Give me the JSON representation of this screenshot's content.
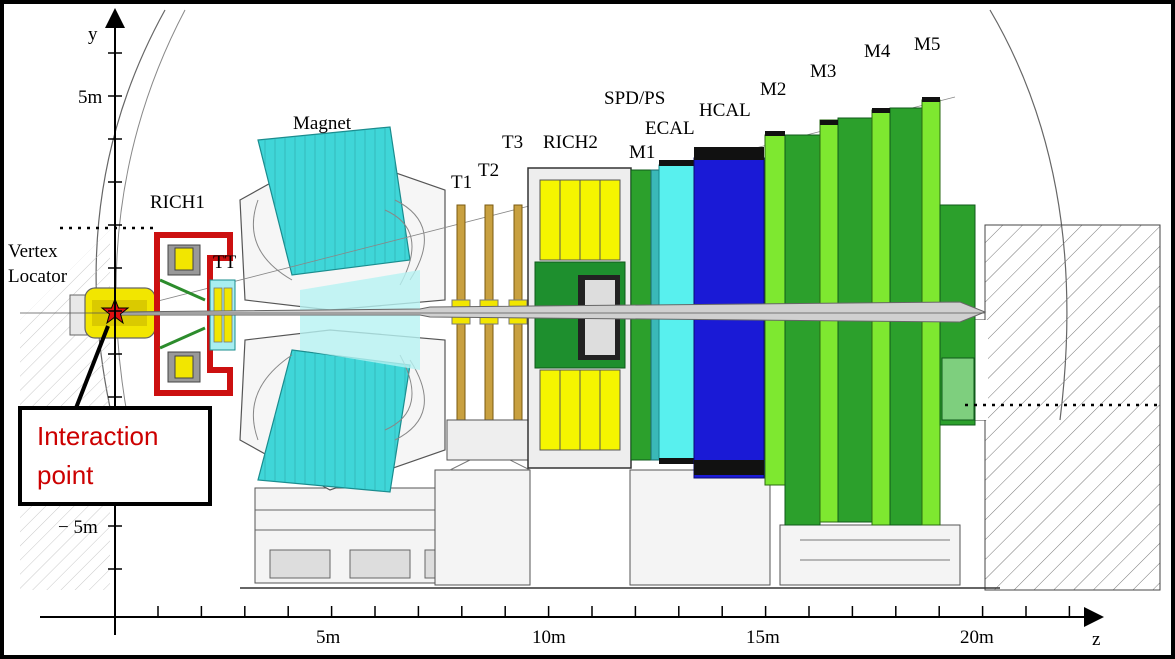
{
  "axes": {
    "y_label": "y",
    "z_label": "z",
    "y_ticks": [
      "5m",
      "− 5m"
    ],
    "z_ticks": [
      "5m",
      "10m",
      "15m",
      "20m"
    ]
  },
  "labels": {
    "magnet": "Magnet",
    "rich1": "RICH1",
    "vertex_line1": "Vertex",
    "vertex_line2": "Locator",
    "tt": "TT",
    "t1": "T1",
    "t2": "T2",
    "t3": "T3",
    "rich2": "RICH2",
    "m1": "M1",
    "spd_ps": "SPD/PS",
    "ecal": "ECAL",
    "hcal": "HCAL",
    "m2": "M2",
    "m3": "M3",
    "m4": "M4",
    "m5": "M5"
  },
  "callout": {
    "line1": "Interaction",
    "line2": "point"
  },
  "colors": {
    "magnet": "#3fd6d8",
    "ecal": "#58f0ee",
    "hcal": "#1a1ad6",
    "muon_green": "#2ca02c",
    "muon_light": "#7ee830",
    "rich_yellow": "#f5f500",
    "rich2_green": "#1e8f2e",
    "rich1_red": "#cc1010",
    "callout_red": "#cc0000",
    "tracker_tan": "#c8a040"
  }
}
